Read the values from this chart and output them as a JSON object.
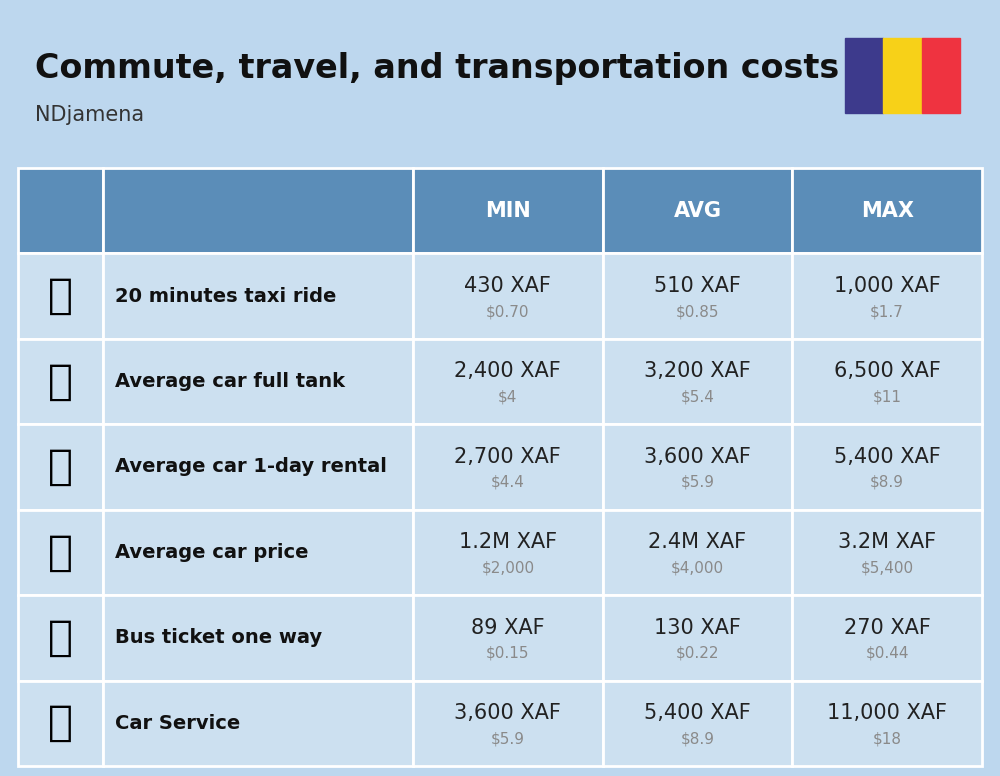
{
  "title": "Commute, travel, and transportation costs",
  "subtitle": "NDjamena",
  "bg_color": "#bdd7ee",
  "header_bg": "#5b8db8",
  "header_text_color": "#ffffff",
  "row_bg": "#cce0f0",
  "border_color": "#ffffff",
  "label_text_color": "#111111",
  "value_text_color": "#222222",
  "subvalue_text_color": "#8a8a8a",
  "columns": [
    "MIN",
    "AVG",
    "MAX"
  ],
  "rows": [
    {
      "label": "20 minutes taxi ride",
      "values": [
        "430 XAF",
        "510 XAF",
        "1,000 XAF"
      ],
      "subvalues": [
        "$0.70",
        "$0.85",
        "$1.7"
      ]
    },
    {
      "label": "Average car full tank",
      "values": [
        "2,400 XAF",
        "3,200 XAF",
        "6,500 XAF"
      ],
      "subvalues": [
        "$4",
        "$5.4",
        "$11"
      ]
    },
    {
      "label": "Average car 1-day rental",
      "values": [
        "2,700 XAF",
        "3,600 XAF",
        "5,400 XAF"
      ],
      "subvalues": [
        "$4.4",
        "$5.9",
        "$8.9"
      ]
    },
    {
      "label": "Average car price",
      "values": [
        "1.2M XAF",
        "2.4M XAF",
        "3.2M XAF"
      ],
      "subvalues": [
        "$2,000",
        "$4,000",
        "$5,400"
      ]
    },
    {
      "label": "Bus ticket one way",
      "values": [
        "89 XAF",
        "130 XAF",
        "270 XAF"
      ],
      "subvalues": [
        "$0.15",
        "$0.22",
        "$0.44"
      ]
    },
    {
      "label": "Car Service",
      "values": [
        "3,600 XAF",
        "5,400 XAF",
        "11,000 XAF"
      ],
      "subvalues": [
        "$5.9",
        "$8.9",
        "$18"
      ]
    }
  ],
  "flag_colors": [
    "#3d3a8c",
    "#F7D118",
    "#EF3340"
  ],
  "title_fontsize": 24,
  "subtitle_fontsize": 15,
  "header_fontsize": 15,
  "label_fontsize": 14,
  "value_fontsize": 15,
  "subvalue_fontsize": 11,
  "emoji_list": [
    "🚕",
    "⛽️",
    "🚙",
    "🚗",
    "🚌",
    "🔧"
  ]
}
